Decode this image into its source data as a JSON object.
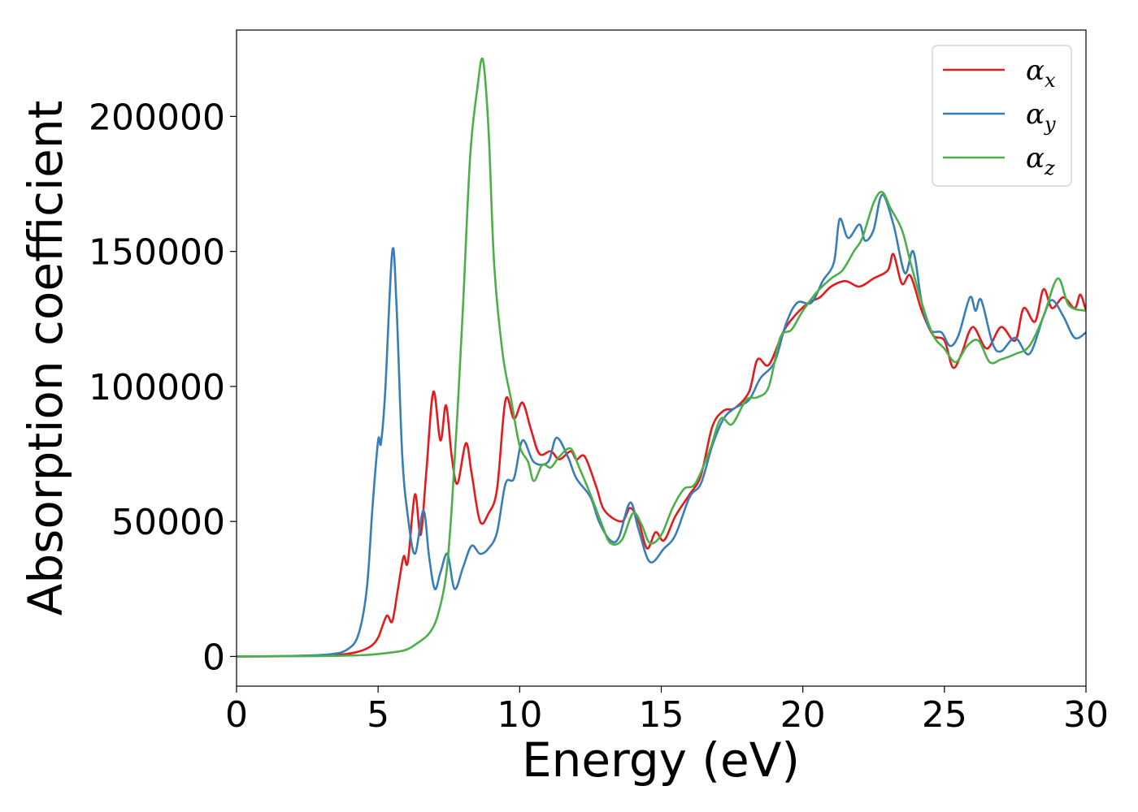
{
  "chart_data": {
    "type": "line",
    "xlabel": "Energy (eV)",
    "ylabel": "Absorption coefficient",
    "xlim": [
      0,
      30
    ],
    "ylim": [
      -11000,
      232000
    ],
    "xticks": [
      0,
      5,
      10,
      15,
      20,
      25,
      30
    ],
    "xtick_labels": [
      "0",
      "5",
      "10",
      "15",
      "20",
      "25",
      "30"
    ],
    "yticks": [
      0,
      50000,
      100000,
      150000,
      200000
    ],
    "ytick_labels": [
      "0",
      "50000",
      "100000",
      "150000",
      "200000"
    ],
    "grid": false,
    "legend_position": "top-right",
    "series": [
      {
        "name": "αx",
        "name_base": "α",
        "name_sub": "x",
        "color": "#e41a1c",
        "points": [
          [
            0,
            0
          ],
          [
            2,
            100
          ],
          [
            3.5,
            500
          ],
          [
            4.2,
            1500
          ],
          [
            4.7,
            3500
          ],
          [
            5.0,
            7000
          ],
          [
            5.3,
            15000
          ],
          [
            5.5,
            13000
          ],
          [
            5.7,
            25000
          ],
          [
            5.9,
            37000
          ],
          [
            6.05,
            35000
          ],
          [
            6.3,
            60000
          ],
          [
            6.5,
            45000
          ],
          [
            6.7,
            68000
          ],
          [
            6.95,
            98000
          ],
          [
            7.2,
            80000
          ],
          [
            7.4,
            93000
          ],
          [
            7.6,
            74000
          ],
          [
            7.8,
            64000
          ],
          [
            8.1,
            79000
          ],
          [
            8.3,
            68000
          ],
          [
            8.6,
            50000
          ],
          [
            8.9,
            53000
          ],
          [
            9.2,
            62000
          ],
          [
            9.5,
            95000
          ],
          [
            9.8,
            88000
          ],
          [
            10.1,
            94000
          ],
          [
            10.4,
            84000
          ],
          [
            10.7,
            75000
          ],
          [
            11.1,
            76000
          ],
          [
            11.4,
            73000
          ],
          [
            11.8,
            76000
          ],
          [
            12.0,
            73000
          ],
          [
            12.3,
            74000
          ],
          [
            12.7,
            63000
          ],
          [
            13.0,
            54000
          ],
          [
            13.6,
            50000
          ],
          [
            13.9,
            55000
          ],
          [
            14.2,
            50000
          ],
          [
            14.5,
            40000
          ],
          [
            14.8,
            46000
          ],
          [
            15.1,
            43000
          ],
          [
            15.5,
            52000
          ],
          [
            16.0,
            60000
          ],
          [
            16.4,
            67000
          ],
          [
            16.8,
            85000
          ],
          [
            17.2,
            91000
          ],
          [
            17.6,
            92000
          ],
          [
            18.1,
            98000
          ],
          [
            18.4,
            110000
          ],
          [
            18.8,
            108000
          ],
          [
            19.3,
            120000
          ],
          [
            19.7,
            126000
          ],
          [
            20.2,
            131000
          ],
          [
            20.6,
            133000
          ],
          [
            21.0,
            137000
          ],
          [
            21.5,
            139000
          ],
          [
            22.0,
            137000
          ],
          [
            22.5,
            140000
          ],
          [
            23.0,
            143000
          ],
          [
            23.2,
            149000
          ],
          [
            23.5,
            138000
          ],
          [
            23.8,
            141000
          ],
          [
            24.2,
            128000
          ],
          [
            24.6,
            119000
          ],
          [
            25.0,
            117000
          ],
          [
            25.3,
            107000
          ],
          [
            25.6,
            112000
          ],
          [
            26.0,
            122000
          ],
          [
            26.5,
            114000
          ],
          [
            27.0,
            122000
          ],
          [
            27.5,
            117000
          ],
          [
            27.8,
            129000
          ],
          [
            28.2,
            124000
          ],
          [
            28.5,
            136000
          ],
          [
            28.8,
            129000
          ],
          [
            29.2,
            133000
          ],
          [
            29.6,
            129000
          ],
          [
            29.8,
            134000
          ],
          [
            30.0,
            128000
          ]
        ]
      },
      {
        "name": "αy",
        "name_base": "α",
        "name_sub": "y",
        "color": "#377eb8",
        "points": [
          [
            0,
            0
          ],
          [
            2,
            200
          ],
          [
            3.3,
            800
          ],
          [
            3.9,
            2500
          ],
          [
            4.3,
            8000
          ],
          [
            4.6,
            25000
          ],
          [
            4.8,
            55000
          ],
          [
            5.0,
            80000
          ],
          [
            5.1,
            79000
          ],
          [
            5.25,
            98000
          ],
          [
            5.5,
            150000
          ],
          [
            5.65,
            130000
          ],
          [
            5.85,
            75000
          ],
          [
            6.05,
            52000
          ],
          [
            6.3,
            38000
          ],
          [
            6.6,
            54000
          ],
          [
            6.8,
            37000
          ],
          [
            7.0,
            25000
          ],
          [
            7.2,
            31000
          ],
          [
            7.45,
            38000
          ],
          [
            7.7,
            25000
          ],
          [
            8.0,
            33000
          ],
          [
            8.3,
            41000
          ],
          [
            8.6,
            38000
          ],
          [
            8.9,
            40000
          ],
          [
            9.2,
            46000
          ],
          [
            9.5,
            64000
          ],
          [
            9.8,
            66000
          ],
          [
            10.1,
            80000
          ],
          [
            10.5,
            72000
          ],
          [
            11.0,
            72000
          ],
          [
            11.3,
            81000
          ],
          [
            11.7,
            74000
          ],
          [
            12.0,
            66000
          ],
          [
            12.5,
            59000
          ],
          [
            12.8,
            50000
          ],
          [
            13.2,
            43000
          ],
          [
            13.5,
            44000
          ],
          [
            13.9,
            57000
          ],
          [
            14.2,
            47000
          ],
          [
            14.6,
            35000
          ],
          [
            15.1,
            40000
          ],
          [
            15.5,
            45000
          ],
          [
            16.0,
            59000
          ],
          [
            16.4,
            64000
          ],
          [
            16.8,
            78000
          ],
          [
            17.2,
            88000
          ],
          [
            17.6,
            92000
          ],
          [
            18.1,
            95000
          ],
          [
            18.5,
            103000
          ],
          [
            19.0,
            109000
          ],
          [
            19.4,
            123000
          ],
          [
            19.8,
            131000
          ],
          [
            20.3,
            131000
          ],
          [
            20.7,
            139000
          ],
          [
            21.1,
            146000
          ],
          [
            21.3,
            162000
          ],
          [
            21.6,
            155000
          ],
          [
            22.0,
            160000
          ],
          [
            22.2,
            154000
          ],
          [
            22.5,
            158000
          ],
          [
            22.8,
            171000
          ],
          [
            23.2,
            160000
          ],
          [
            23.6,
            142000
          ],
          [
            23.9,
            150000
          ],
          [
            24.2,
            131000
          ],
          [
            24.5,
            121000
          ],
          [
            24.9,
            120000
          ],
          [
            25.2,
            115000
          ],
          [
            25.5,
            119000
          ],
          [
            25.9,
            133000
          ],
          [
            26.1,
            128000
          ],
          [
            26.3,
            132000
          ],
          [
            26.7,
            116000
          ],
          [
            27.0,
            113000
          ],
          [
            27.5,
            118000
          ],
          [
            28.0,
            112000
          ],
          [
            28.5,
            126000
          ],
          [
            28.8,
            132000
          ],
          [
            29.2,
            126000
          ],
          [
            29.6,
            118000
          ],
          [
            30.0,
            120000
          ]
        ]
      },
      {
        "name": "αz",
        "name_base": "α",
        "name_sub": "z",
        "color": "#4daf4a",
        "points": [
          [
            0,
            0
          ],
          [
            3,
            150
          ],
          [
            4.5,
            500
          ],
          [
            5.5,
            1500
          ],
          [
            6.0,
            2500
          ],
          [
            6.4,
            5000
          ],
          [
            6.8,
            8500
          ],
          [
            7.1,
            15000
          ],
          [
            7.4,
            30000
          ],
          [
            7.6,
            55000
          ],
          [
            7.8,
            90000
          ],
          [
            8.0,
            130000
          ],
          [
            8.25,
            185000
          ],
          [
            8.5,
            210000
          ],
          [
            8.7,
            221000
          ],
          [
            8.9,
            195000
          ],
          [
            9.1,
            145000
          ],
          [
            9.4,
            112000
          ],
          [
            9.7,
            95000
          ],
          [
            10.0,
            78000
          ],
          [
            10.3,
            72000
          ],
          [
            10.5,
            65000
          ],
          [
            10.8,
            71000
          ],
          [
            11.1,
            70000
          ],
          [
            11.4,
            74000
          ],
          [
            11.8,
            77000
          ],
          [
            12.1,
            70000
          ],
          [
            12.5,
            60000
          ],
          [
            12.9,
            49000
          ],
          [
            13.2,
            42000
          ],
          [
            13.6,
            43000
          ],
          [
            14.0,
            53000
          ],
          [
            14.3,
            49000
          ],
          [
            14.6,
            42000
          ],
          [
            15.0,
            45000
          ],
          [
            15.4,
            55000
          ],
          [
            15.8,
            62000
          ],
          [
            16.2,
            64000
          ],
          [
            16.7,
            76000
          ],
          [
            17.1,
            88000
          ],
          [
            17.5,
            86000
          ],
          [
            18.0,
            95000
          ],
          [
            18.4,
            96000
          ],
          [
            18.8,
            100000
          ],
          [
            19.2,
            118000
          ],
          [
            19.6,
            121000
          ],
          [
            20.0,
            128000
          ],
          [
            20.5,
            135000
          ],
          [
            21.0,
            140000
          ],
          [
            21.4,
            143000
          ],
          [
            21.8,
            150000
          ],
          [
            22.1,
            155000
          ],
          [
            22.5,
            168000
          ],
          [
            22.8,
            172000
          ],
          [
            23.1,
            166000
          ],
          [
            23.5,
            158000
          ],
          [
            23.8,
            146000
          ],
          [
            24.2,
            131000
          ],
          [
            24.6,
            119000
          ],
          [
            25.0,
            114000
          ],
          [
            25.4,
            109000
          ],
          [
            25.8,
            115000
          ],
          [
            26.2,
            117000
          ],
          [
            26.6,
            109000
          ],
          [
            27.0,
            110000
          ],
          [
            27.5,
            112000
          ],
          [
            28.0,
            115000
          ],
          [
            28.5,
            126000
          ],
          [
            29.0,
            140000
          ],
          [
            29.4,
            130000
          ],
          [
            30.0,
            128000
          ]
        ]
      }
    ]
  }
}
